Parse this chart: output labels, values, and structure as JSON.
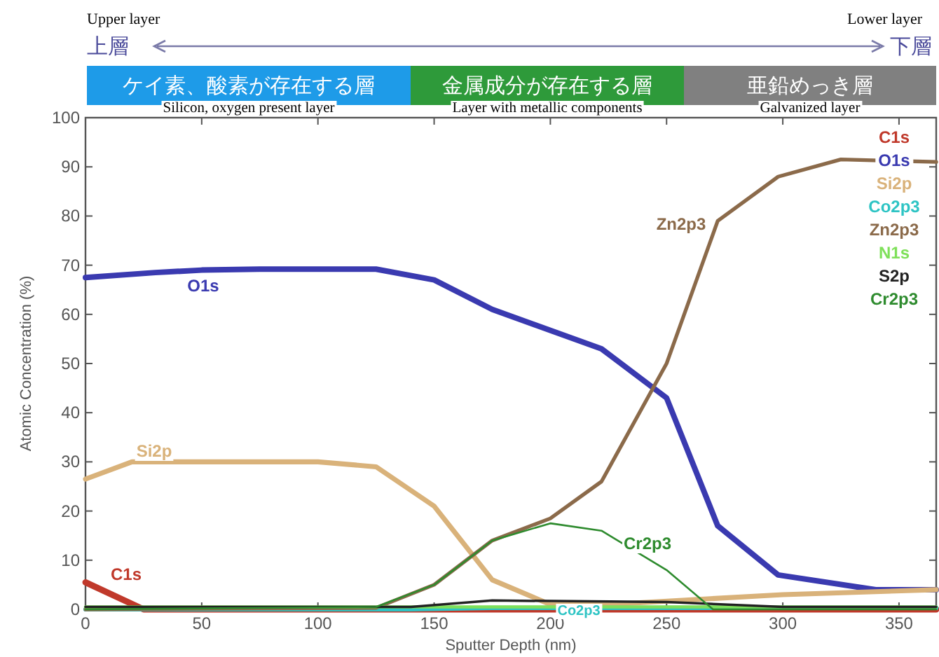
{
  "chart_data": {
    "type": "line",
    "xlabel": "Sputter Depth (nm)",
    "ylabel": "Atomic Concentration (%)",
    "xlim": [
      0,
      366
    ],
    "ylim": [
      0,
      100
    ],
    "xticks": [
      0,
      50,
      100,
      150,
      200,
      250,
      300,
      350
    ],
    "yticks": [
      0,
      10,
      20,
      30,
      40,
      50,
      60,
      70,
      80,
      90,
      100
    ],
    "grid": false,
    "legend": "top right",
    "marker": "none",
    "line_style": "solid",
    "series": [
      {
        "name": "C1s",
        "color": "#c0392b",
        "x": [
          0,
          25,
          366
        ],
        "values": [
          5.5,
          0,
          0
        ]
      },
      {
        "name": "O1s",
        "color": "#3a3ab0",
        "x": [
          0,
          30,
          50,
          75,
          125,
          150,
          175,
          222,
          250,
          272,
          298,
          340,
          366
        ],
        "values": [
          67.5,
          68.5,
          69,
          69.2,
          69.2,
          67,
          61,
          53,
          43,
          17,
          7,
          4,
          4
        ]
      },
      {
        "name": "Si2p",
        "color": "#d9b27a",
        "x": [
          0,
          20,
          60,
          100,
          125,
          150,
          175,
          200,
          225,
          300,
          366
        ],
        "values": [
          26.5,
          30,
          30,
          30,
          29,
          21,
          6,
          1,
          1,
          3,
          4
        ]
      },
      {
        "name": "Co2p3",
        "color": "#2ec4c4",
        "x": [
          0,
          140,
          175,
          366
        ],
        "values": [
          0,
          0,
          0.3,
          0.3
        ]
      },
      {
        "name": "Zn2p3",
        "color": "#8b6a4a",
        "x": [
          0,
          125,
          150,
          175,
          200,
          222,
          250,
          272,
          298,
          325,
          366
        ],
        "values": [
          0,
          0.3,
          5,
          14,
          18.5,
          26,
          50,
          79,
          88,
          91.5,
          91
        ]
      },
      {
        "name": "N1s",
        "color": "#7fe05a",
        "x": [
          0,
          366
        ],
        "values": [
          0.5,
          0.5
        ]
      },
      {
        "name": "S2p",
        "color": "#222222",
        "x": [
          0,
          140,
          175,
          250,
          300,
          366
        ],
        "values": [
          0.5,
          0.5,
          1.8,
          1.5,
          0.5,
          0.5
        ]
      },
      {
        "name": "Cr2p3",
        "color": "#2e8b2e",
        "x": [
          0,
          125,
          150,
          175,
          200,
          222,
          250,
          270,
          366
        ],
        "values": [
          0,
          0.5,
          5,
          14,
          17.5,
          16,
          8,
          0,
          0
        ]
      }
    ],
    "annotations": [
      "Upper layer",
      "上層",
      "Lower layer",
      "下層",
      "ケイ素、酸素が存在する層",
      "金属成分が存在する層",
      "亜鉛めっき層",
      "Silicon, oxygen present layer",
      "Layer with metallic components",
      "Galvanized layer",
      "O1s",
      "Si2p",
      "C1s",
      "Zn2p3",
      "Cr2p3",
      "Co2p3"
    ]
  }
}
